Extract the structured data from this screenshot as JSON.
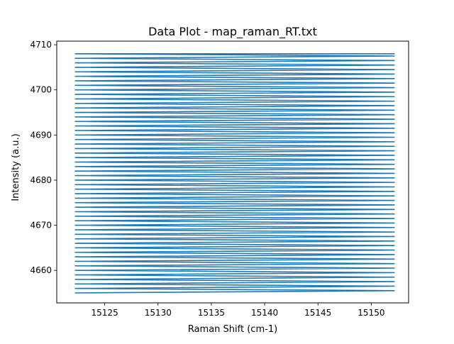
{
  "chart_data": {
    "type": "line",
    "title": "Data Plot - map_raman_RT.txt",
    "xlabel": "Raman Shift (cm-1)",
    "ylabel": "Intensity (a.u.)",
    "xlim": [
      15120.5,
      15153.5
    ],
    "ylim": [
      4652.8,
      4710.8
    ],
    "xticks": [
      15125,
      15130,
      15135,
      15140,
      15145,
      15150
    ],
    "yticks": [
      4660,
      4670,
      4680,
      4690,
      4700,
      4710
    ],
    "grid": false,
    "legend": "none",
    "series": [
      {
        "color": "#1f77b4",
        "x_start": 15122.2,
        "x_end": 15152.2,
        "y_min": 4655.0,
        "y_max": 4708.0,
        "y_step": 1.0,
        "direction": "zigzag: each sweep runs from x_start to x_end while rising 0.5, then returns to x_start at the next level"
      }
    ]
  }
}
